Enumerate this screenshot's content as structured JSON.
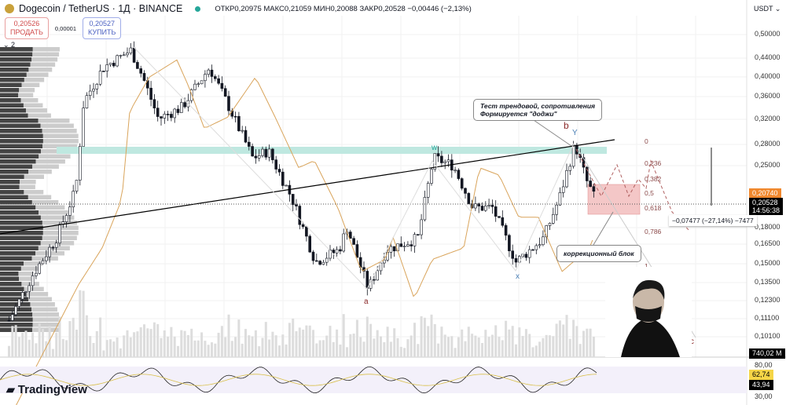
{
  "header": {
    "symbol": "Dogecoin / TetherUS · 1Д · BINANCE",
    "ohlc": "ОТКР0,20975 МАКС0,21059 МИН0,20088 ЗАКР0,20528 −0,00446 (−2,13%)"
  },
  "trade": {
    "sell_price": "0,20526",
    "sell_label": "ПРОДАТЬ",
    "spread": "0,00001",
    "buy_price": "0,20527",
    "buy_label": "КУПИТЬ"
  },
  "collapse_label": "2",
  "currency": "USDT",
  "price_axis": [
    "0,50000",
    "0,44000",
    "0,40000",
    "0,36000",
    "0,32000",
    "0,28000",
    "0,25000",
    "0,18000",
    "0,16500",
    "0,15000",
    "0,13500",
    "0,12300",
    "0,11100",
    "0,10100"
  ],
  "tags": {
    "ma": "0,20740",
    "last": "0,20528",
    "countdown": "14:56:38",
    "volume": "740,02 M",
    "rsi_upper": "80,00",
    "rsi_ma": "62,74",
    "rsi": "43,94",
    "rsi_lower": "30,00"
  },
  "annotations": {
    "note1_line1": "Тест трендовой, сопротивления",
    "note1_line2": "Формируется \"доджи\"",
    "note2": "коррекционный блок",
    "measure": "−0,07477 (−27,14%) −7477",
    "wave_w": "w",
    "wave_x": "x",
    "wave_y": "Y",
    "wave_a": "a",
    "wave_b": "b",
    "wave_c": "c"
  },
  "fib_levels": [
    "0",
    "0,236",
    "0,382",
    "0,5",
    "0,618",
    "0,786",
    "1"
  ],
  "colors": {
    "up": "#ffffff",
    "down": "#131722",
    "ma": "#d9a45b",
    "ma_tag": "#f0882e",
    "zone": "#bfe8e0",
    "block": "#f4c7c7",
    "rsi_tag": "#f5d547"
  },
  "brand": "TradingView"
}
